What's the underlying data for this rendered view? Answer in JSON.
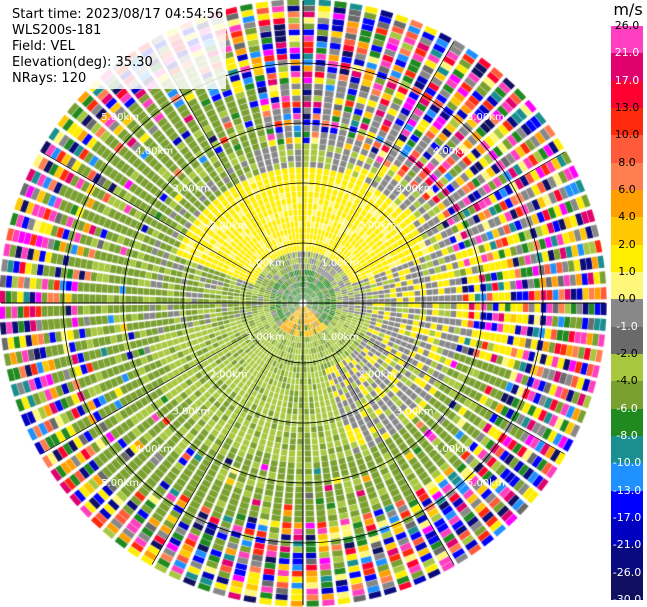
{
  "info": {
    "start_time": "Start time: 2023/08/17 04:54:56",
    "instrument": "WLS200s-181",
    "field": "Field: VEL",
    "elevation": "Elevation(deg): 35.30",
    "nrays": "NRays: 120"
  },
  "colorbar": {
    "unit": "m/s",
    "labels": [
      "26.0",
      "21.0",
      "17.0",
      "13.0",
      "10.0",
      "8.0",
      "6.0",
      "4.0",
      "2.0",
      "1.0",
      "0.0",
      "-1.0",
      "-2.0",
      "-4.0",
      "-6.0",
      "-8.0",
      "-10.0",
      "-13.0",
      "-17.0",
      "-21.0",
      "-26.0",
      "-30.0"
    ],
    "colors": [
      "#ff3fbf",
      "#e0006e",
      "#ff0030",
      "#ff2a0c",
      "#ff5a3a",
      "#ff7f4f",
      "#ffa000",
      "#ffc800",
      "#ffee00",
      "#fff77a",
      "#888888",
      "#6a6a6a",
      "#a8c840",
      "#7aa030",
      "#208a20",
      "#1a8f8f",
      "#1e90ff",
      "#0000ff",
      "#0000c0",
      "#0a0a80",
      "#101060"
    ]
  },
  "chart_data": {
    "type": "heatmap",
    "projection": "PPI (polar)",
    "field": "VEL",
    "units": "m/s",
    "elevation_deg": 35.3,
    "n_rays": 120,
    "range_ring_labels": [
      "1.00km",
      "2.00km",
      "3.00km",
      "4.00km",
      "5.00km"
    ],
    "vmin": -30.0,
    "vmax": 26.0
  }
}
